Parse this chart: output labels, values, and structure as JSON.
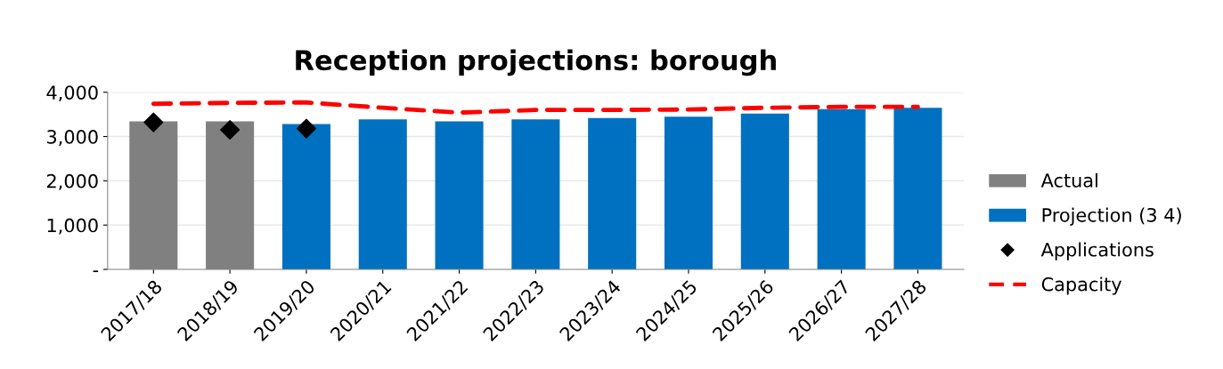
{
  "chart_data": {
    "type": "bar",
    "title": "Reception projections: borough",
    "categories": [
      "2017/18",
      "2018/19",
      "2019/20",
      "2020/21",
      "2021/22",
      "2022/23",
      "2023/24",
      "2024/25",
      "2025/26",
      "2026/27",
      "2027/28"
    ],
    "series": [
      {
        "name": "Actual",
        "color": "#808080",
        "values": [
          3340,
          3340,
          null,
          null,
          null,
          null,
          null,
          null,
          null,
          null,
          null
        ]
      },
      {
        "name": "Projection (3 4)",
        "type": "bar",
        "color": "#0070c0",
        "values": [
          null,
          null,
          3280,
          3390,
          3340,
          3390,
          3420,
          3450,
          3520,
          3620,
          3650
        ]
      },
      {
        "name": "Applications",
        "type": "scatter",
        "color": "#000000",
        "marker": "diamond",
        "values": [
          3320,
          3150,
          3180,
          null,
          null,
          null,
          null,
          null,
          null,
          null,
          null
        ]
      },
      {
        "name": "Capacity",
        "type": "line",
        "color": "#ff0000",
        "line_style": "dashed",
        "values": [
          3740,
          3760,
          3770,
          3650,
          3540,
          3600,
          3600,
          3610,
          3650,
          3670,
          3670
        ]
      }
    ],
    "ylim": [
      0,
      4000
    ],
    "yticks": [
      {
        "value": 0,
        "label": "-"
      },
      {
        "value": 1000,
        "label": "1,000"
      },
      {
        "value": 2000,
        "label": "2,000"
      },
      {
        "value": 3000,
        "label": "3,000"
      },
      {
        "value": 4000,
        "label": "4,000"
      }
    ],
    "grid": "y",
    "legend": "right"
  }
}
